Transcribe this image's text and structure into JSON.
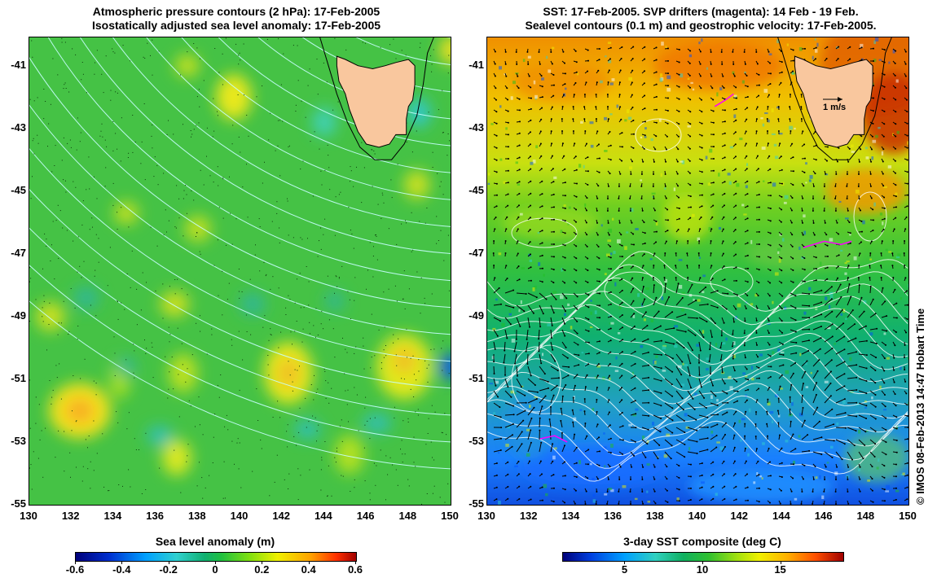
{
  "left_panel": {
    "title_line1": "Atmospheric pressure contours (2 hPa): 17-Feb-2005",
    "title_line2": "Isostatically adjusted sea level anomaly: 17-Feb-2005",
    "colorbar_label": "Sea level anomaly (m)",
    "colorbar_ticks": [
      "-0.6",
      "-0.4",
      "-0.2",
      "0",
      "0.2",
      "0.4",
      "0.6"
    ],
    "colorbar_range": [
      -0.6,
      0.6
    ],
    "colorbar_tick_values": [
      -0.6,
      -0.4,
      -0.2,
      0,
      0.2,
      0.4,
      0.6
    ]
  },
  "right_panel": {
    "title_line1": "SST: 17-Feb-2005. SVP drifters (magenta): 14 Feb - 19 Feb.",
    "title_line2": "Sealevel contours (0.1 m) and geostrophic velocity: 17-Feb-2005.",
    "colorbar_label": "3-day SST composite (deg C)",
    "colorbar_ticks": [
      "5",
      "10",
      "15"
    ],
    "colorbar_range": [
      1,
      19
    ],
    "colorbar_tick_values": [
      5,
      10,
      15
    ],
    "velocity_scale_label": "1 m/s"
  },
  "axes": {
    "lat_ticks": [
      "-41",
      "-43",
      "-45",
      "-47",
      "-49",
      "-51",
      "-53",
      "-55"
    ],
    "lat_values": [
      -41,
      -43,
      -45,
      -47,
      -49,
      -51,
      -53,
      -55
    ],
    "lon_ticks": [
      "130",
      "132",
      "134",
      "136",
      "138",
      "140",
      "142",
      "144",
      "146",
      "148",
      "150"
    ],
    "lon_values": [
      130,
      132,
      134,
      136,
      138,
      140,
      142,
      144,
      146,
      148,
      150
    ],
    "lat_range": [
      -55,
      -40.1
    ],
    "lon_range": [
      130,
      150
    ]
  },
  "credit": "© IMOS 08-Feb-2013 14:47 Hobart Time",
  "colors": {
    "land": "#f9c79e",
    "pressure_contour": "#c8ffff",
    "sealevel_contour": "#ffffff",
    "drifter": "#ff00ff",
    "anomaly_base": "#3fc33f",
    "sst_warm": "#f0a000",
    "sst_cold": "#1a8cff"
  }
}
